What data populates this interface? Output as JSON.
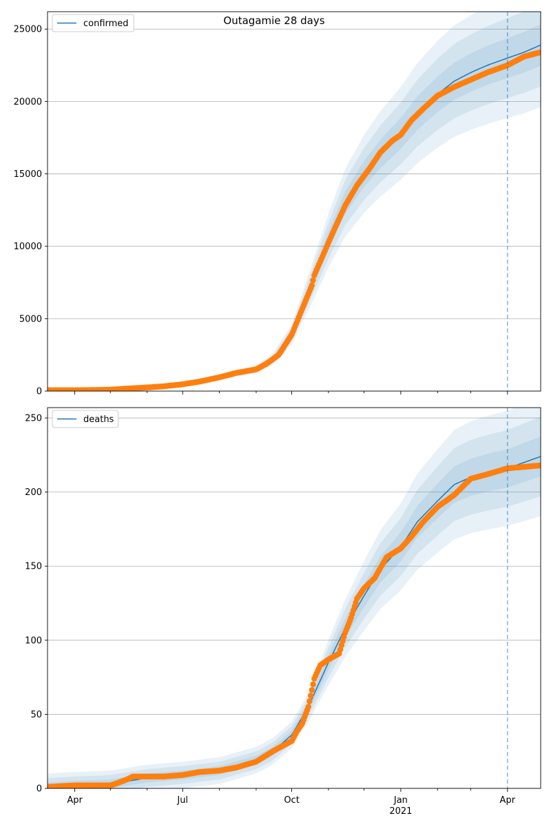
{
  "title": "Outagamie 28 days",
  "colors": {
    "model_line": "#1f77b4",
    "band": "#1f77b4",
    "observed": "#ff7f0e",
    "forecast_line": "#1f77b4",
    "grid": "#b0b0b0"
  },
  "chart_data": [
    {
      "type": "line",
      "name": "confirmed-panel",
      "legend": {
        "label": "confirmed",
        "placement": "top-left"
      },
      "grid": "horizontal",
      "xlim": [
        "2020-03-09",
        "2021-04-29"
      ],
      "ylim": [
        0,
        26200
      ],
      "yticks": [
        0,
        5000,
        10000,
        15000,
        20000,
        25000
      ],
      "xtick_labels_shown": false,
      "forecast_start": "2021-04-01",
      "observed": {
        "x": [
          "2020-03-09",
          "2020-03-20",
          "2020-04-01",
          "2020-04-15",
          "2020-05-01",
          "2020-05-15",
          "2020-06-01",
          "2020-06-15",
          "2020-07-01",
          "2020-07-15",
          "2020-08-01",
          "2020-08-15",
          "2020-09-01",
          "2020-09-10",
          "2020-09-20",
          "2020-10-01",
          "2020-10-10",
          "2020-10-18",
          "2020-10-20",
          "2020-10-28",
          "2020-11-05",
          "2020-11-15",
          "2020-11-25",
          "2020-12-05",
          "2020-12-15",
          "2020-12-25",
          "2021-01-01",
          "2021-01-10",
          "2021-01-20",
          "2021-02-01",
          "2021-02-15",
          "2021-03-01",
          "2021-03-15",
          "2021-04-01",
          "2021-04-15",
          "2021-04-29"
        ],
        "y": [
          60,
          60,
          60,
          70,
          100,
          170,
          250,
          330,
          470,
          650,
          950,
          1250,
          1500,
          1900,
          2500,
          3900,
          5700,
          7300,
          8000,
          9500,
          11000,
          12800,
          14200,
          15300,
          16500,
          17300,
          17700,
          18700,
          19500,
          20400,
          21000,
          21500,
          22000,
          22500,
          23100,
          23400
        ]
      },
      "model": {
        "x": [
          "2020-03-09",
          "2020-04-01",
          "2020-05-01",
          "2020-06-01",
          "2020-07-01",
          "2020-08-01",
          "2020-09-01",
          "2020-09-15",
          "2020-10-01",
          "2020-10-15",
          "2020-11-01",
          "2020-11-15",
          "2020-12-01",
          "2020-12-15",
          "2021-01-01",
          "2021-01-15",
          "2021-02-01",
          "2021-02-15",
          "2021-03-01",
          "2021-03-15",
          "2021-04-01",
          "2021-04-15",
          "2021-04-29"
        ],
        "y": [
          60,
          60,
          100,
          250,
          470,
          950,
          1500,
          2200,
          3900,
          6800,
          10400,
          13000,
          15000,
          16400,
          17800,
          19200,
          20500,
          21400,
          22000,
          22500,
          23000,
          23400,
          23900
        ],
        "bands_relative": [
          0.06,
          0.12,
          0.18
        ]
      }
    },
    {
      "type": "line",
      "name": "deaths-panel",
      "legend": {
        "label": "deaths",
        "placement": "top-left"
      },
      "grid": "horizontal",
      "xlim": [
        "2020-03-09",
        "2021-04-29"
      ],
      "ylim": [
        0,
        257
      ],
      "yticks": [
        0,
        50,
        100,
        150,
        200,
        250
      ],
      "xticks": [
        {
          "date": "2020-04-01",
          "label": "Apr"
        },
        {
          "date": "2020-07-01",
          "label": "Jul"
        },
        {
          "date": "2020-10-01",
          "label": "Oct"
        },
        {
          "date": "2021-01-01",
          "label": "Jan",
          "sublabel": "2021"
        },
        {
          "date": "2021-04-01",
          "label": "Apr"
        }
      ],
      "forecast_start": "2021-04-01",
      "observed": {
        "x": [
          "2020-03-09",
          "2020-04-01",
          "2020-04-15",
          "2020-05-01",
          "2020-05-05",
          "2020-05-15",
          "2020-05-20",
          "2020-06-01",
          "2020-06-15",
          "2020-07-01",
          "2020-07-15",
          "2020-08-01",
          "2020-08-15",
          "2020-09-01",
          "2020-09-15",
          "2020-10-01",
          "2020-10-05",
          "2020-10-10",
          "2020-10-15",
          "2020-10-20",
          "2020-10-25",
          "2020-11-01",
          "2020-11-10",
          "2020-11-15",
          "2020-11-20",
          "2020-11-25",
          "2020-12-01",
          "2020-12-10",
          "2020-12-20",
          "2021-01-01",
          "2021-01-10",
          "2021-01-20",
          "2021-02-01",
          "2021-02-15",
          "2021-03-01",
          "2021-03-15",
          "2021-04-01",
          "2021-04-15",
          "2021-04-29"
        ],
        "y": [
          1,
          2,
          2,
          2,
          3,
          6,
          8,
          8,
          8,
          9,
          11,
          12,
          14,
          18,
          25,
          32,
          38,
          44,
          55,
          74,
          83,
          87,
          91,
          105,
          115,
          128,
          135,
          142,
          156,
          162,
          170,
          180,
          190,
          198,
          209,
          212,
          216,
          217,
          218
        ]
      },
      "model": {
        "x": [
          "2020-03-09",
          "2020-04-01",
          "2020-05-01",
          "2020-06-01",
          "2020-07-01",
          "2020-08-01",
          "2020-09-01",
          "2020-09-15",
          "2020-10-01",
          "2020-10-15",
          "2020-11-01",
          "2020-11-15",
          "2020-12-01",
          "2020-12-15",
          "2021-01-01",
          "2021-01-15",
          "2021-02-01",
          "2021-02-15",
          "2021-03-01",
          "2021-03-15",
          "2021-04-01",
          "2021-04-15",
          "2021-04-29"
        ],
        "y": [
          1,
          2,
          3,
          7,
          9,
          12,
          19,
          25,
          36,
          55,
          85,
          108,
          130,
          148,
          163,
          180,
          194,
          205,
          210,
          213,
          216,
          220,
          224
        ],
        "bands_relative": [
          0.06,
          0.12,
          0.18
        ],
        "band_min": [
          3,
          6,
          9
        ]
      }
    }
  ]
}
